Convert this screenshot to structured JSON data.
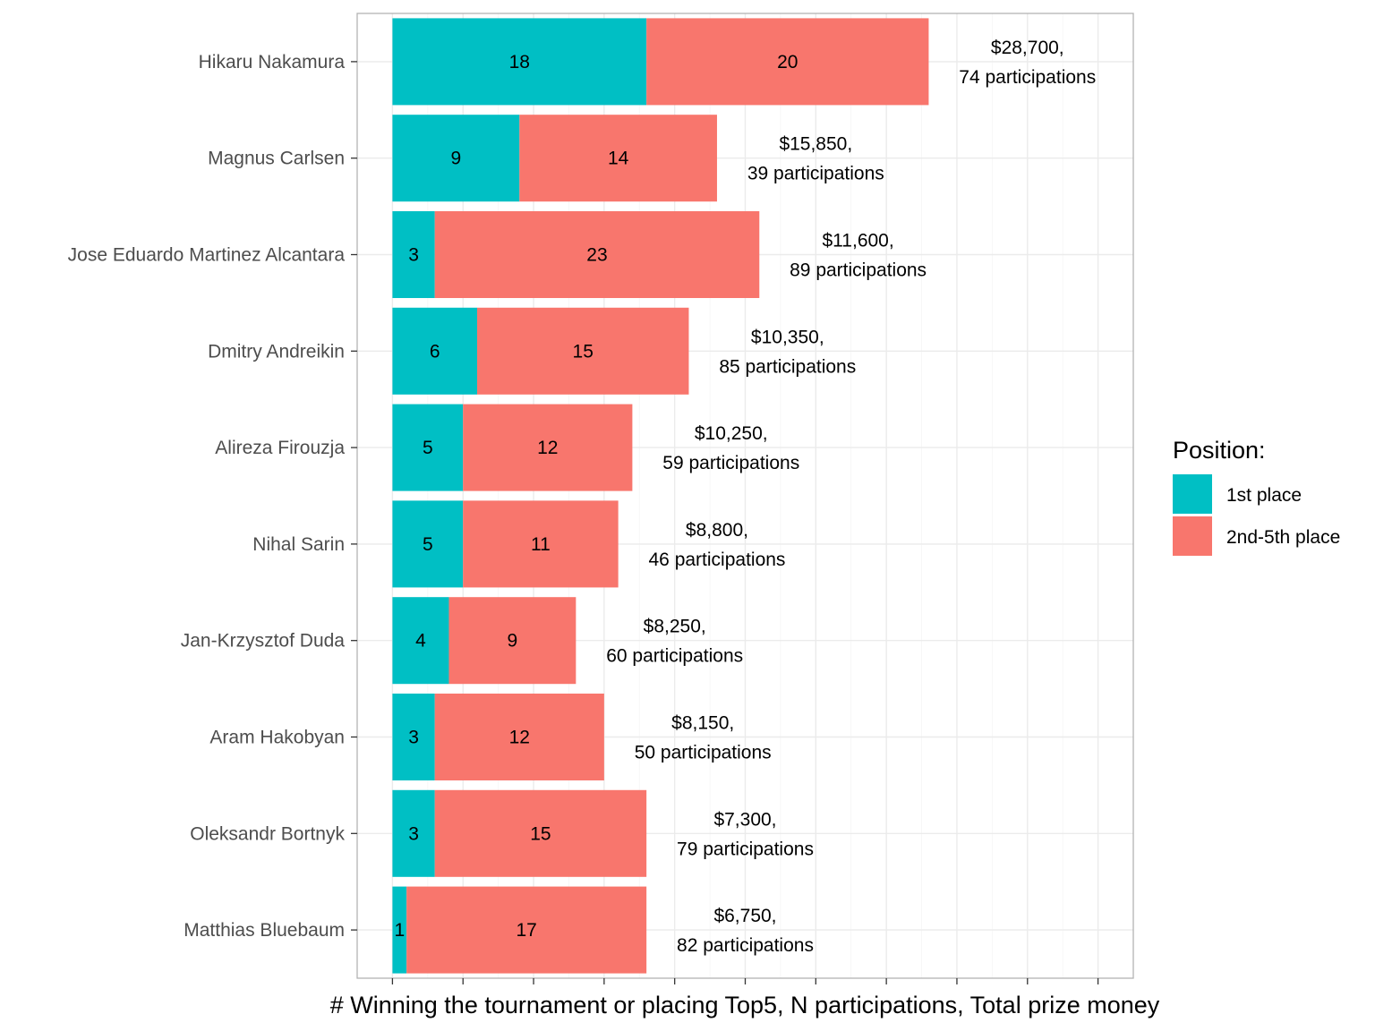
{
  "chart_data": {
    "type": "bar",
    "orientation": "horizontal",
    "stacked": true,
    "title": "",
    "xlabel": "# Winning the tournament or placing Top5, N participations, Total prize money",
    "ylabel": "",
    "xlim": [
      -2.5,
      52.5
    ],
    "grid": true,
    "categories": [
      "Hikaru Nakamura",
      "Magnus Carlsen",
      "Jose Eduardo Martinez Alcantara",
      "Dmitry Andreikin",
      "Alireza Firouzja",
      "Nihal Sarin",
      "Jan-Krzysztof Duda",
      "Aram Hakobyan",
      "Oleksandr Bortnyk",
      "Matthias Bluebaum"
    ],
    "series": [
      {
        "name": "1st place",
        "color": "#00BFC4",
        "values": [
          18,
          9,
          3,
          6,
          5,
          5,
          4,
          3,
          3,
          1
        ]
      },
      {
        "name": "2nd-5th place",
        "color": "#F8766D",
        "values": [
          20,
          14,
          23,
          15,
          12,
          11,
          9,
          12,
          15,
          17
        ]
      }
    ],
    "annotations": [
      {
        "prize": "$28,700,",
        "participations": "74 participations"
      },
      {
        "prize": "$15,850,",
        "participations": "39 participations"
      },
      {
        "prize": "$11,600,",
        "participations": "89 participations"
      },
      {
        "prize": "$10,350,",
        "participations": "85 participations"
      },
      {
        "prize": "$10,250,",
        "participations": "59 participations"
      },
      {
        "prize": "$8,800,",
        "participations": "46 participations"
      },
      {
        "prize": "$8,250,",
        "participations": "60 participations"
      },
      {
        "prize": "$8,150,",
        "participations": "50 participations"
      },
      {
        "prize": "$7,300,",
        "participations": "79 participations"
      },
      {
        "prize": "$6,750,",
        "participations": "82 participations"
      }
    ],
    "legend": {
      "title": "Position:",
      "placement": "right"
    }
  }
}
